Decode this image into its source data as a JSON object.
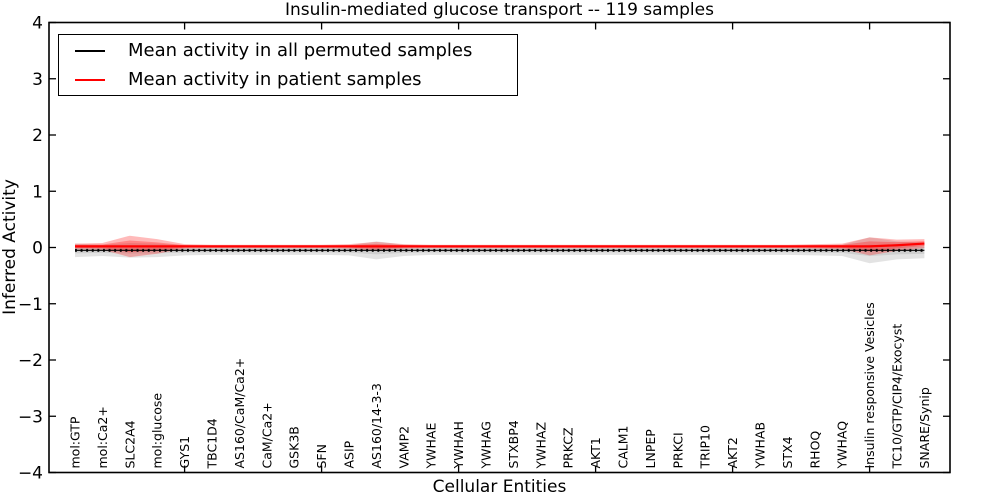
{
  "legend": {
    "items": [
      {
        "label": "Mean activity in all permuted samples",
        "color": "#000000"
      },
      {
        "label": "Mean activity in patient samples",
        "color": "#ff0000"
      }
    ]
  },
  "chart_data": {
    "type": "violin",
    "title": "Insulin-mediated glucose transport -- 119 samples",
    "xlabel": "Cellular Entities",
    "ylabel": "Inferred Activity",
    "ylim": [
      -4,
      4
    ],
    "ytick_values": [
      4,
      3,
      2,
      1,
      0,
      -1,
      -2,
      -3,
      -4
    ],
    "ytick_labels": [
      "4",
      "3",
      "2",
      "1",
      "0",
      "−1",
      "−2",
      "−3",
      "−4"
    ],
    "xtick_data_positions": [
      5,
      10,
      15,
      20,
      25,
      30
    ],
    "grid": false,
    "legend_position": "upper left",
    "categories": [
      "mol:GTP",
      "mol:Ca2+",
      "SLC2A4",
      "mol:glucose",
      "GYS1",
      "TBC1D4",
      "AS160/CaM/Ca2+",
      "CaM/Ca2+",
      "GSK3B",
      "SFN",
      "ASIP",
      "AS160/14-3-3",
      "VAMP2",
      "YWHAE",
      "YWHAH",
      "YWHAG",
      "STXBP4",
      "YWHAZ",
      "PRKCZ",
      "AKT1",
      "CALM1",
      "LNPEP",
      "PRKCI",
      "TRIP10",
      "AKT2",
      "YWHAB",
      "STX4",
      "RHOQ",
      "YWHAQ",
      "Insulin responsive Vesicles",
      "TC10/GTP/CIP4/Exocyst",
      "SNARE/Synip"
    ],
    "series": [
      {
        "name": "Mean activity in all permuted samples",
        "color": "#000000",
        "style": "solid-with-dash-markers",
        "values": [
          -0.05,
          -0.05,
          -0.05,
          -0.05,
          -0.05,
          -0.05,
          -0.05,
          -0.05,
          -0.05,
          -0.05,
          -0.05,
          -0.05,
          -0.05,
          -0.05,
          -0.05,
          -0.05,
          -0.05,
          -0.05,
          -0.05,
          -0.05,
          -0.05,
          -0.05,
          -0.05,
          -0.05,
          -0.05,
          -0.05,
          -0.05,
          -0.05,
          -0.05,
          -0.05,
          -0.05,
          -0.05
        ]
      },
      {
        "name": "Mean activity in patient samples",
        "color": "#ff0000",
        "style": "solid",
        "values": [
          0.02,
          0.02,
          0.02,
          0.02,
          0.02,
          0.02,
          0.02,
          0.02,
          0.02,
          0.02,
          0.02,
          0.02,
          0.02,
          0.02,
          0.02,
          0.02,
          0.02,
          0.02,
          0.02,
          0.02,
          0.02,
          0.02,
          0.02,
          0.02,
          0.02,
          0.02,
          0.02,
          0.02,
          0.02,
          0.02,
          0.04,
          0.07
        ]
      }
    ],
    "violins": {
      "permuted": {
        "color": "#000000",
        "opacity": 0.11,
        "half_widths": [
          0.12,
          0.1,
          0.13,
          0.12,
          0.09,
          0.08,
          0.08,
          0.08,
          0.08,
          0.08,
          0.09,
          0.16,
          0.1,
          0.08,
          0.08,
          0.08,
          0.08,
          0.08,
          0.08,
          0.08,
          0.08,
          0.08,
          0.08,
          0.08,
          0.08,
          0.08,
          0.08,
          0.09,
          0.1,
          0.23,
          0.16,
          0.14
        ]
      },
      "patient": {
        "color": "#ff0000",
        "opacity": 0.27,
        "half_widths": [
          0.05,
          0.06,
          0.19,
          0.13,
          0.04,
          0.03,
          0.03,
          0.03,
          0.03,
          0.03,
          0.04,
          0.08,
          0.04,
          0.03,
          0.03,
          0.03,
          0.03,
          0.03,
          0.03,
          0.03,
          0.03,
          0.03,
          0.03,
          0.03,
          0.03,
          0.03,
          0.03,
          0.04,
          0.05,
          0.16,
          0.1,
          0.08
        ]
      }
    }
  }
}
